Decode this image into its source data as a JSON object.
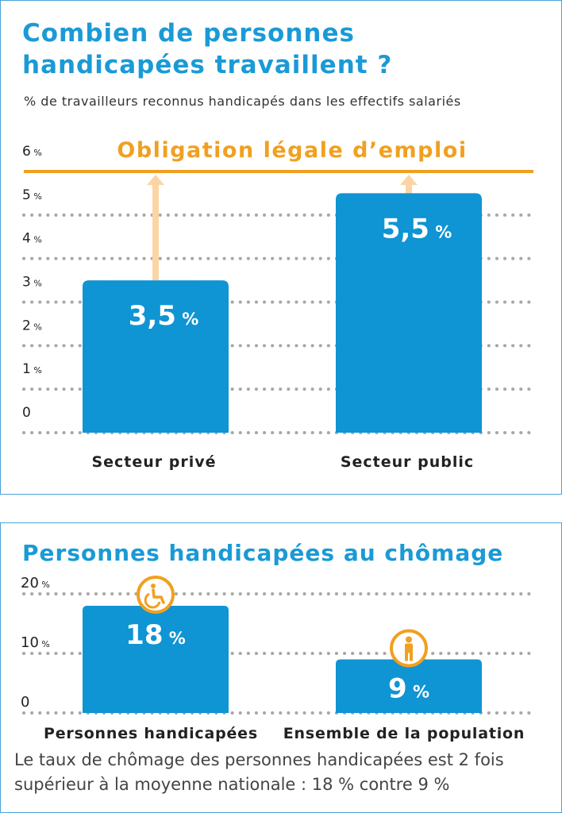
{
  "colors": {
    "bar": "#0f94d4",
    "accent": "#f0a020",
    "arrow": "#fbd5a5",
    "dots": "#a7a7a7",
    "title": "#1a9ad6",
    "text": "#222222"
  },
  "icons": [
    "wheelchair-icon",
    "person-icon"
  ],
  "chart_data": [
    {
      "type": "bar",
      "title": "Combien de personnes handicapées travaillent ?",
      "subtitle": "% de travailleurs reconnus handicapés dans les effectifs salariés",
      "categories": [
        "Secteur privé",
        "Secteur public"
      ],
      "values": [
        3.5,
        5.5
      ],
      "value_labels": [
        "3,5",
        "5,5"
      ],
      "unit": "%",
      "ylim": [
        0,
        6
      ],
      "yticks": [
        {
          "value": 0,
          "label": "0",
          "unit": ""
        },
        {
          "value": 1,
          "label": "1",
          "unit": "%"
        },
        {
          "value": 2,
          "label": "2",
          "unit": "%"
        },
        {
          "value": 3,
          "label": "3",
          "unit": "%"
        },
        {
          "value": 4,
          "label": "4",
          "unit": "%"
        },
        {
          "value": 5,
          "label": "5",
          "unit": "%"
        },
        {
          "value": 6,
          "label": "6",
          "unit": "%"
        }
      ],
      "reference_line": {
        "value": 6,
        "label": "Obligation légale d’emploi"
      },
      "grid": true
    },
    {
      "type": "bar",
      "title": "Personnes handicapées au chômage",
      "categories": [
        "Personnes handicapées",
        "Ensemble de la population"
      ],
      "values": [
        18,
        9
      ],
      "value_labels": [
        "18",
        "9"
      ],
      "unit": "%",
      "ylim": [
        0,
        20
      ],
      "yticks": [
        {
          "value": 0,
          "label": "0",
          "unit": ""
        },
        {
          "value": 10,
          "label": "10",
          "unit": "%"
        },
        {
          "value": 20,
          "label": "20",
          "unit": "%"
        }
      ],
      "grid": true,
      "caption": [
        "Le taux de chômage des personnes handicapées est 2 fois",
        "supérieur à la moyenne nationale : 18 % contre 9 %"
      ]
    }
  ]
}
